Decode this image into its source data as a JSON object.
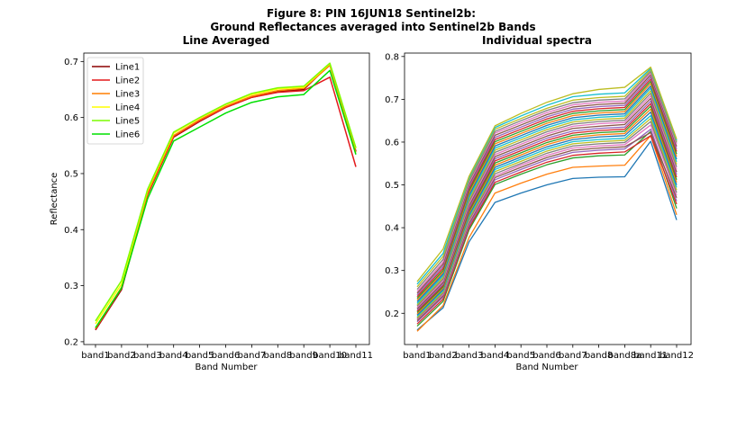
{
  "figure": {
    "title_line1": "Figure 8: PIN 16JUN18  Sentinel2b:",
    "title_line2": "Ground Reflectances averaged into Sentinel2b Bands"
  },
  "chart_data": [
    {
      "type": "line",
      "title": "Line Averaged",
      "xlabel": "Band Number",
      "ylabel": "Reflectance",
      "categories": [
        "band1",
        "band2",
        "band3",
        "band4",
        "band5",
        "band6",
        "band7",
        "band8",
        "band9",
        "band10",
        "band11"
      ],
      "ylim": [
        0.195,
        0.715
      ],
      "yticks": [
        0.2,
        0.3,
        0.4,
        0.5,
        0.6,
        0.7
      ],
      "legend_position": "top-left",
      "series": [
        {
          "name": "Line1",
          "color": "#8b0000",
          "values": [
            0.221,
            0.293,
            0.462,
            0.565,
            0.593,
            0.618,
            0.636,
            0.646,
            0.65,
            0.695,
            0.54
          ]
        },
        {
          "name": "Line2",
          "color": "#e31a1c",
          "values": [
            0.222,
            0.295,
            0.463,
            0.566,
            0.594,
            0.618,
            0.636,
            0.645,
            0.648,
            0.672,
            0.512
          ]
        },
        {
          "name": "Line3",
          "color": "#ff7f00",
          "values": [
            0.224,
            0.297,
            0.465,
            0.568,
            0.596,
            0.62,
            0.638,
            0.648,
            0.652,
            0.693,
            0.538
          ]
        },
        {
          "name": "Line4",
          "color": "#ffff00",
          "values": [
            0.232,
            0.303,
            0.47,
            0.572,
            0.599,
            0.623,
            0.641,
            0.651,
            0.654,
            0.696,
            0.545
          ]
        },
        {
          "name": "Line5",
          "color": "#7cfc00",
          "values": [
            0.237,
            0.309,
            0.472,
            0.574,
            0.6,
            0.624,
            0.643,
            0.653,
            0.656,
            0.697,
            0.546
          ]
        },
        {
          "name": "Line6",
          "color": "#00e000",
          "values": [
            0.225,
            0.296,
            0.455,
            0.558,
            0.583,
            0.608,
            0.627,
            0.637,
            0.641,
            0.684,
            0.534
          ]
        }
      ]
    },
    {
      "type": "line",
      "title": "Individual spectra",
      "xlabel": "Band Number",
      "ylabel": "",
      "categories": [
        "band1",
        "band2",
        "band3",
        "band4",
        "band5",
        "band6",
        "band7",
        "band8",
        "band8a",
        "band11",
        "band12"
      ],
      "ylim": [
        0.127,
        0.808
      ],
      "yticks": [
        0.2,
        0.3,
        0.4,
        0.5,
        0.6,
        0.7,
        0.8
      ],
      "series": [
        {
          "values": [
            0.161,
            0.213,
            0.367,
            0.459,
            0.481,
            0.5,
            0.515,
            0.518,
            0.519,
            0.602,
            0.418
          ],
          "color": "#1f77b4"
        },
        {
          "values": [
            0.158,
            0.218,
            0.377,
            0.481,
            0.504,
            0.525,
            0.541,
            0.544,
            0.546,
            0.615,
            0.43
          ],
          "color": "#ff7f0e"
        },
        {
          "values": [
            0.17,
            0.228,
            0.395,
            0.501,
            0.525,
            0.547,
            0.563,
            0.568,
            0.57,
            0.625,
            0.445
          ],
          "color": "#2ca02c"
        },
        {
          "values": [
            0.175,
            0.233,
            0.4,
            0.506,
            0.53,
            0.553,
            0.569,
            0.574,
            0.577,
            0.615,
            0.455
          ],
          "color": "#d62728"
        },
        {
          "values": [
            0.18,
            0.238,
            0.405,
            0.512,
            0.536,
            0.559,
            0.576,
            0.581,
            0.584,
            0.63,
            0.462
          ],
          "color": "#9467bd"
        },
        {
          "values": [
            0.183,
            0.241,
            0.41,
            0.517,
            0.541,
            0.564,
            0.581,
            0.586,
            0.589,
            0.622,
            0.47
          ],
          "color": "#8c564b"
        },
        {
          "values": [
            0.186,
            0.244,
            0.414,
            0.521,
            0.546,
            0.569,
            0.586,
            0.591,
            0.594,
            0.64,
            0.476
          ],
          "color": "#e377c2"
        },
        {
          "values": [
            0.188,
            0.247,
            0.418,
            0.526,
            0.55,
            0.574,
            0.591,
            0.596,
            0.599,
            0.648,
            0.482
          ],
          "color": "#7f7f7f"
        },
        {
          "values": [
            0.19,
            0.25,
            0.422,
            0.531,
            0.555,
            0.579,
            0.596,
            0.601,
            0.604,
            0.655,
            0.488
          ],
          "color": "#bcbd22"
        },
        {
          "values": [
            0.193,
            0.253,
            0.426,
            0.536,
            0.56,
            0.584,
            0.601,
            0.606,
            0.609,
            0.662,
            0.494
          ],
          "color": "#17becf"
        },
        {
          "values": [
            0.196,
            0.256,
            0.43,
            0.541,
            0.565,
            0.589,
            0.606,
            0.612,
            0.615,
            0.67,
            0.5
          ],
          "color": "#1f77b4"
        },
        {
          "values": [
            0.199,
            0.259,
            0.434,
            0.546,
            0.57,
            0.594,
            0.611,
            0.617,
            0.62,
            0.677,
            0.506
          ],
          "color": "#ff7f0e"
        },
        {
          "values": [
            0.202,
            0.262,
            0.438,
            0.551,
            0.575,
            0.599,
            0.616,
            0.622,
            0.625,
            0.684,
            0.512
          ],
          "color": "#2ca02c"
        },
        {
          "values": [
            0.205,
            0.265,
            0.442,
            0.556,
            0.58,
            0.604,
            0.621,
            0.627,
            0.63,
            0.69,
            0.518
          ],
          "color": "#d62728"
        },
        {
          "values": [
            0.208,
            0.268,
            0.446,
            0.561,
            0.585,
            0.609,
            0.626,
            0.632,
            0.635,
            0.696,
            0.524
          ],
          "color": "#9467bd"
        },
        {
          "values": [
            0.211,
            0.272,
            0.451,
            0.566,
            0.59,
            0.614,
            0.632,
            0.637,
            0.641,
            0.702,
            0.53
          ],
          "color": "#8c564b"
        },
        {
          "values": [
            0.214,
            0.276,
            0.456,
            0.571,
            0.595,
            0.619,
            0.637,
            0.643,
            0.646,
            0.708,
            0.536
          ],
          "color": "#e377c2"
        },
        {
          "values": [
            0.217,
            0.28,
            0.461,
            0.576,
            0.6,
            0.624,
            0.642,
            0.648,
            0.651,
            0.714,
            0.542
          ],
          "color": "#7f7f7f"
        },
        {
          "values": [
            0.22,
            0.284,
            0.466,
            0.581,
            0.605,
            0.629,
            0.647,
            0.653,
            0.656,
            0.72,
            0.548
          ],
          "color": "#bcbd22"
        },
        {
          "values": [
            0.223,
            0.288,
            0.471,
            0.586,
            0.61,
            0.634,
            0.652,
            0.658,
            0.661,
            0.726,
            0.554
          ],
          "color": "#17becf"
        },
        {
          "values": [
            0.227,
            0.292,
            0.476,
            0.591,
            0.615,
            0.639,
            0.657,
            0.663,
            0.666,
            0.731,
            0.56
          ],
          "color": "#1f77b4"
        },
        {
          "values": [
            0.231,
            0.296,
            0.481,
            0.596,
            0.62,
            0.644,
            0.662,
            0.668,
            0.671,
            0.737,
            0.566
          ],
          "color": "#ff7f0e"
        },
        {
          "values": [
            0.235,
            0.3,
            0.486,
            0.601,
            0.625,
            0.649,
            0.667,
            0.673,
            0.676,
            0.742,
            0.572
          ],
          "color": "#2ca02c"
        },
        {
          "values": [
            0.239,
            0.305,
            0.491,
            0.606,
            0.63,
            0.654,
            0.672,
            0.678,
            0.681,
            0.747,
            0.578
          ],
          "color": "#d62728"
        },
        {
          "values": [
            0.243,
            0.31,
            0.496,
            0.611,
            0.635,
            0.659,
            0.677,
            0.683,
            0.686,
            0.752,
            0.584
          ],
          "color": "#9467bd"
        },
        {
          "values": [
            0.247,
            0.315,
            0.501,
            0.616,
            0.64,
            0.664,
            0.682,
            0.688,
            0.691,
            0.757,
            0.59
          ],
          "color": "#8c564b"
        },
        {
          "values": [
            0.251,
            0.32,
            0.505,
            0.621,
            0.645,
            0.669,
            0.687,
            0.693,
            0.696,
            0.761,
            0.595
          ],
          "color": "#e377c2"
        },
        {
          "values": [
            0.256,
            0.326,
            0.509,
            0.625,
            0.65,
            0.674,
            0.692,
            0.698,
            0.701,
            0.765,
            0.599
          ],
          "color": "#7f7f7f"
        },
        {
          "values": [
            0.262,
            0.333,
            0.513,
            0.63,
            0.655,
            0.679,
            0.698,
            0.704,
            0.707,
            0.769,
            0.602
          ],
          "color": "#bcbd22"
        },
        {
          "values": [
            0.268,
            0.34,
            0.516,
            0.634,
            0.661,
            0.686,
            0.706,
            0.712,
            0.715,
            0.772,
            0.604
          ],
          "color": "#17becf"
        },
        {
          "values": [
            0.274,
            0.35,
            0.52,
            0.638,
            0.667,
            0.693,
            0.713,
            0.723,
            0.728,
            0.775,
            0.607
          ],
          "color": "#bcbd22"
        }
      ]
    }
  ]
}
